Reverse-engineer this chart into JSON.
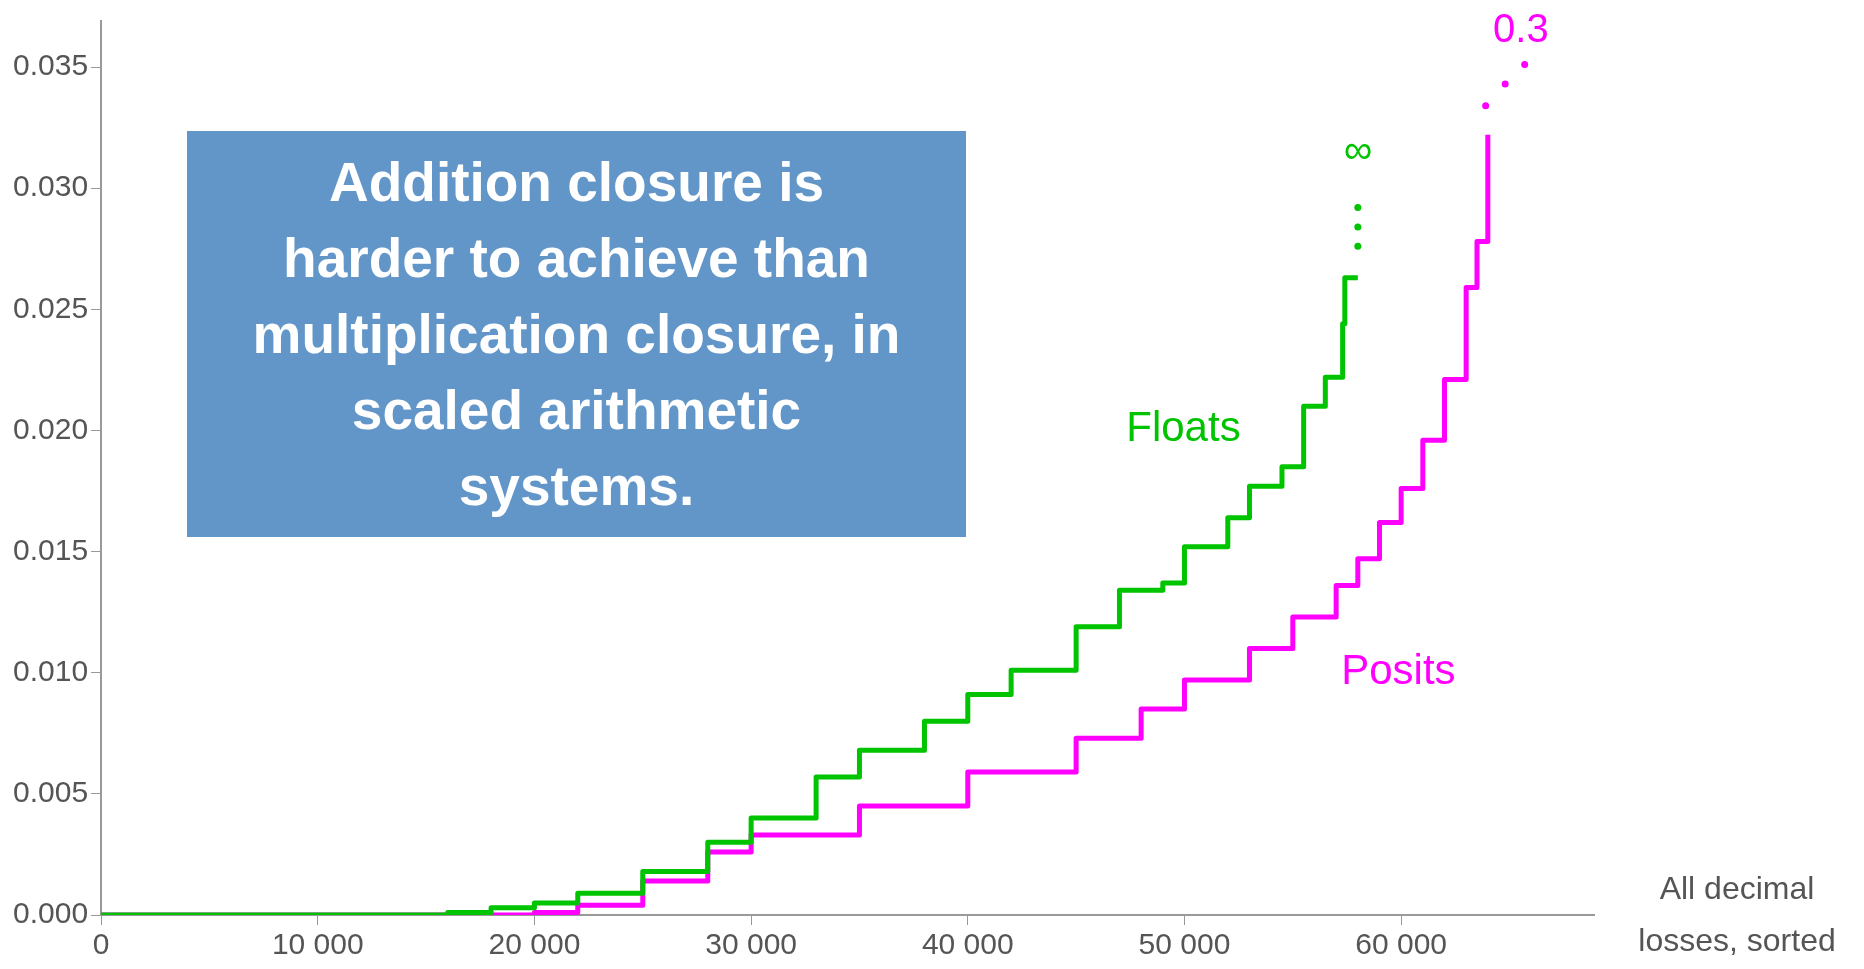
{
  "chart_data": {
    "type": "step",
    "xlabel": "All decimal losses, sorted",
    "xlim": [
      0,
      68900
    ],
    "ylim": [
      0,
      0.0369
    ],
    "xticks": [
      0,
      {
        "value": 10000,
        "label": "10 000"
      },
      {
        "value": 20000,
        "label": "20 000"
      },
      {
        "value": 30000,
        "label": "30 000"
      },
      {
        "value": 40000,
        "label": "40 000"
      },
      {
        "value": 50000,
        "label": "50 000"
      },
      {
        "value": 60000,
        "label": "60 000"
      }
    ],
    "yticks": [
      {
        "value": 0,
        "label": "0.000"
      },
      {
        "value": 0.005,
        "label": "0.005"
      },
      {
        "value": 0.01,
        "label": "0.010"
      },
      {
        "value": 0.015,
        "label": "0.015"
      },
      {
        "value": 0.02,
        "label": "0.020"
      },
      {
        "value": 0.025,
        "label": "0.025"
      },
      {
        "value": 0.03,
        "label": "0.030"
      },
      {
        "value": 0.035,
        "label": "0.035"
      }
    ],
    "grid": false,
    "legend": false,
    "marker": "none",
    "series": [
      {
        "name": "Floats",
        "color": "#00c400",
        "x": [
          0,
          13000,
          16000,
          18000,
          20000,
          22000,
          25000,
          28000,
          30000,
          33000,
          35000,
          38000,
          40000,
          42000,
          45000,
          47000,
          49000,
          50000,
          52000,
          53000,
          54500,
          55500,
          56500,
          57300,
          57400,
          58000
        ],
        "values": [
          0,
          0,
          0.0001,
          0.0003,
          0.0005,
          0.0009,
          0.0018,
          0.003,
          0.004,
          0.0057,
          0.0068,
          0.008,
          0.0091,
          0.0101,
          0.0119,
          0.0134,
          0.0137,
          0.0152,
          0.0164,
          0.0177,
          0.0185,
          0.021,
          0.0222,
          0.0244,
          0.0263,
          0.0263
        ]
      },
      {
        "name": "Posits",
        "color": "#ff00ff",
        "x": [
          0,
          15000,
          18000,
          20000,
          22000,
          25000,
          28000,
          30000,
          35000,
          40000,
          45000,
          48000,
          50000,
          53000,
          55000,
          57000,
          58000,
          59000,
          60000,
          61000,
          62000,
          63000,
          63500,
          64000
        ],
        "values": [
          0,
          0,
          0,
          0.0001,
          0.0004,
          0.0014,
          0.0026,
          0.0033,
          0.0045,
          0.0059,
          0.0073,
          0.0085,
          0.0097,
          0.011,
          0.0123,
          0.0136,
          0.0147,
          0.0162,
          0.0176,
          0.0196,
          0.0221,
          0.0259,
          0.0278,
          0.0322
        ]
      },
      {
        "type": "scatter",
        "marker": "circle",
        "color": "#00c400",
        "x": [
          58000,
          58000,
          58000
        ],
        "values": [
          0.0276,
          0.0284,
          0.0292
        ]
      },
      {
        "type": "scatter",
        "marker": "circle",
        "color": "#ff00ff",
        "x": [
          63900,
          64800,
          65700
        ],
        "values": [
          0.0334,
          0.0343,
          0.0351
        ]
      }
    ],
    "annotations": [
      "Addition closure is harder to achieve than multiplication closure, in scaled arithmetic systems.",
      "∞",
      "0.3"
    ]
  }
}
